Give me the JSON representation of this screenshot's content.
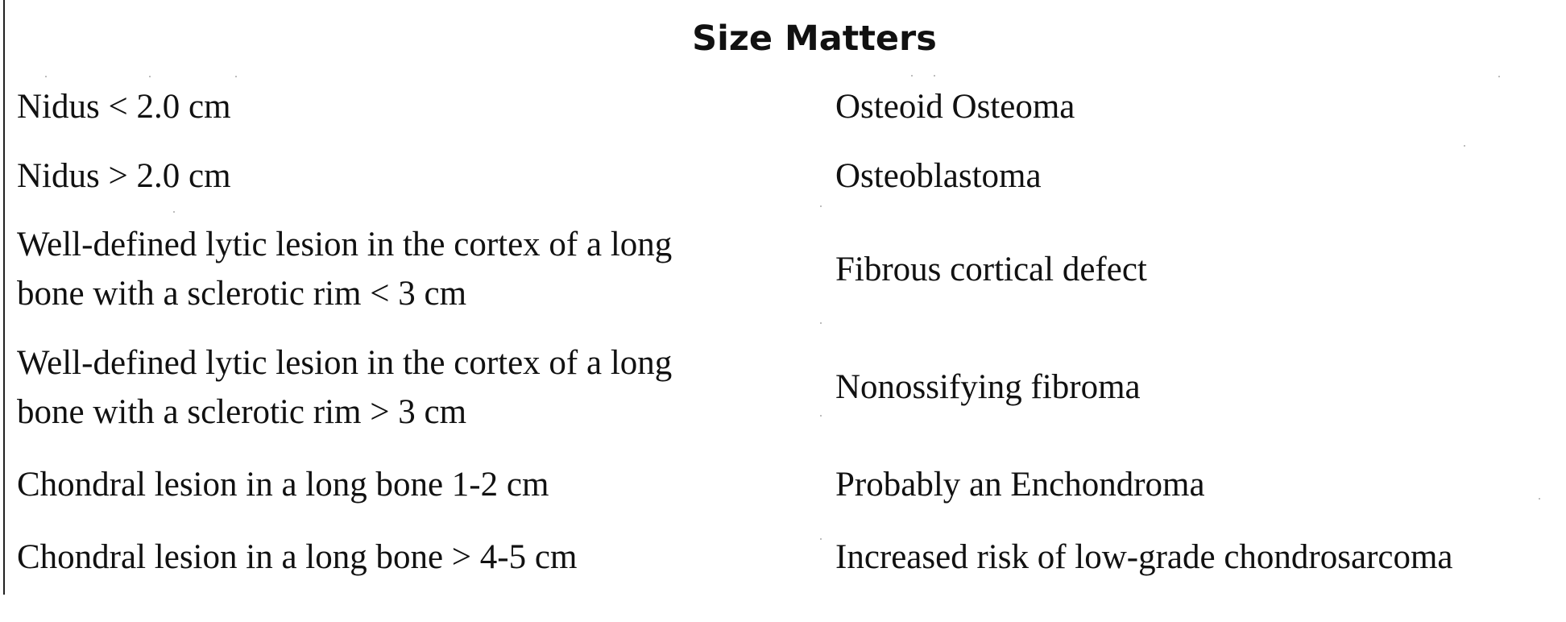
{
  "title": "Size Matters",
  "rows": [
    {
      "finding": "Nidus < 2.0 cm",
      "diagnosis": "Osteoid Osteoma"
    },
    {
      "finding": "Nidus > 2.0 cm",
      "diagnosis": "Osteoblastoma"
    },
    {
      "finding_line1": "Well-defined lytic lesion in the cortex of a long",
      "finding_line2": "bone with a sclerotic rim < 3 cm",
      "diagnosis": "Fibrous cortical defect"
    },
    {
      "finding_line1": "Well-defined lytic lesion in the cortex of a long",
      "finding_line2": "bone with a sclerotic rim > 3 cm",
      "diagnosis": "Nonossifying fibroma"
    },
    {
      "finding": "Chondral lesion in a long bone 1-2 cm",
      "diagnosis": "Probably an Enchondroma"
    },
    {
      "finding": "Chondral lesion in a long bone > 4-5 cm",
      "diagnosis": "Increased risk of low-grade chondrosarcoma"
    }
  ]
}
